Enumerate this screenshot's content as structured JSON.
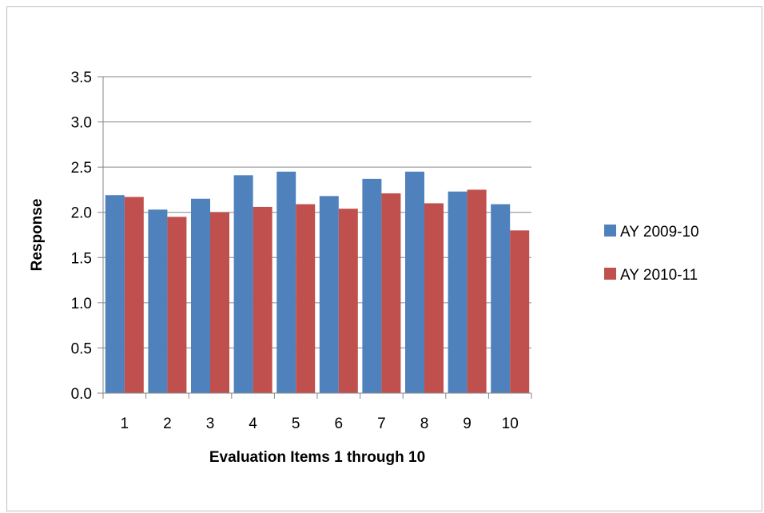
{
  "chart_data": {
    "type": "bar",
    "title": "",
    "xlabel": "Evaluation Items 1 through 10",
    "ylabel": "Response",
    "categories": [
      "1",
      "2",
      "3",
      "4",
      "5",
      "6",
      "7",
      "8",
      "9",
      "10"
    ],
    "series": [
      {
        "name": "AY 2009-10",
        "color": "#4f81bd",
        "values": [
          2.19,
          2.03,
          2.15,
          2.41,
          2.45,
          2.18,
          2.37,
          2.45,
          2.23,
          2.09
        ]
      },
      {
        "name": "AY 2010-11",
        "color": "#c0504d",
        "values": [
          2.17,
          1.95,
          2.0,
          2.06,
          2.09,
          2.04,
          2.21,
          2.1,
          2.25,
          1.8
        ]
      }
    ],
    "ylim": [
      0,
      3.5
    ],
    "yticks": [
      "0.0",
      "0.5",
      "1.0",
      "1.5",
      "2.0",
      "2.5",
      "3.0",
      "3.5"
    ],
    "grid": true,
    "legend": "right"
  }
}
